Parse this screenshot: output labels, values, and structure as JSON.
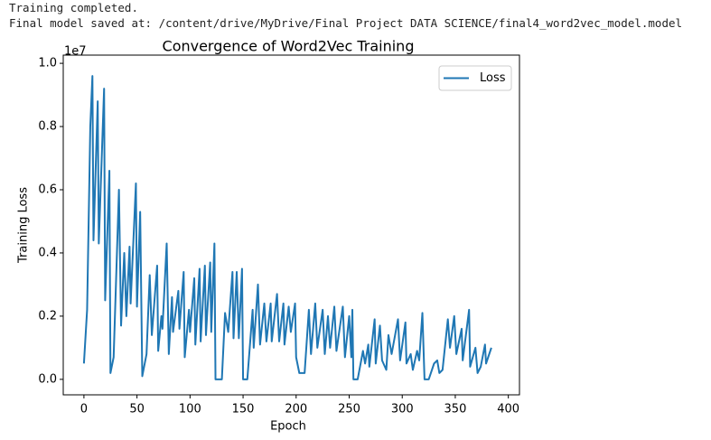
{
  "console": [
    "Training completed.",
    "Final model saved at: /content/drive/MyDrive/Final Project DATA SCIENCE/final4_word2vec_model.model"
  ],
  "chart_data": {
    "type": "line",
    "title": "Convergence of Word2Vec Training",
    "xlabel": "Epoch",
    "ylabel": "Training Loss",
    "y_offset_label": "1e7",
    "x": [
      0,
      3,
      6,
      8,
      9,
      13,
      14,
      19,
      20,
      24,
      25,
      28,
      33,
      35,
      38,
      40,
      43,
      44,
      49,
      50,
      53,
      55,
      59,
      62,
      64,
      69,
      70,
      73,
      74,
      78,
      80,
      83,
      84,
      89,
      90,
      94,
      95,
      99,
      100,
      104,
      105,
      109,
      110,
      114,
      115,
      119,
      120,
      123,
      124,
      130,
      133,
      136,
      140,
      141,
      144,
      146,
      149,
      150,
      154,
      159,
      160,
      164,
      166,
      170,
      172,
      176,
      177,
      182,
      184,
      188,
      189,
      193,
      195,
      199,
      200,
      203,
      208,
      212,
      214,
      218,
      220,
      225,
      227,
      230,
      232,
      236,
      238,
      244,
      246,
      250,
      252,
      253,
      254,
      258,
      263,
      265,
      268,
      269,
      274,
      275,
      279,
      281,
      285,
      287,
      290,
      296,
      298,
      303,
      304,
      308,
      310,
      314,
      316,
      319,
      321,
      325,
      330,
      333,
      335,
      338,
      343,
      345,
      349,
      351,
      356,
      357,
      363,
      364,
      369,
      371,
      374,
      378,
      379,
      384
    ],
    "series": [
      {
        "name": "Loss",
        "color": "#1f77b4",
        "values": [
          0.05,
          0.22,
          0.8,
          0.96,
          0.44,
          0.88,
          0.43,
          0.92,
          0.25,
          0.66,
          0.02,
          0.07,
          0.6,
          0.17,
          0.4,
          0.2,
          0.42,
          0.24,
          0.62,
          0.23,
          0.53,
          0.01,
          0.08,
          0.33,
          0.14,
          0.36,
          0.09,
          0.2,
          0.16,
          0.43,
          0.08,
          0.26,
          0.15,
          0.28,
          0.16,
          0.34,
          0.07,
          0.22,
          0.15,
          0.32,
          0.11,
          0.35,
          0.12,
          0.36,
          0.14,
          0.37,
          0.15,
          0.43,
          0.0,
          0.0,
          0.21,
          0.15,
          0.34,
          0.13,
          0.34,
          0.13,
          0.35,
          0.0,
          0.0,
          0.22,
          0.1,
          0.3,
          0.11,
          0.24,
          0.12,
          0.24,
          0.12,
          0.27,
          0.12,
          0.24,
          0.11,
          0.23,
          0.15,
          0.24,
          0.07,
          0.02,
          0.02,
          0.22,
          0.08,
          0.24,
          0.1,
          0.22,
          0.08,
          0.2,
          0.1,
          0.23,
          0.09,
          0.23,
          0.07,
          0.2,
          0.07,
          0.22,
          0.0,
          0.0,
          0.09,
          0.05,
          0.11,
          0.04,
          0.19,
          0.05,
          0.17,
          0.06,
          0.03,
          0.14,
          0.08,
          0.19,
          0.06,
          0.18,
          0.05,
          0.08,
          0.03,
          0.09,
          0.06,
          0.21,
          0.0,
          0.0,
          0.05,
          0.06,
          0.02,
          0.03,
          0.19,
          0.1,
          0.2,
          0.08,
          0.16,
          0.06,
          0.22,
          0.04,
          0.1,
          0.02,
          0.04,
          0.11,
          0.05,
          0.1
        ]
      }
    ],
    "xlim": [
      -19.5,
      410.5
    ],
    "ylim": [
      -0.049,
      1.026
    ],
    "xticks": [
      0,
      50,
      100,
      150,
      200,
      250,
      300,
      350,
      400
    ],
    "yticks": [
      {
        "value": 0,
        "label": "0.0"
      },
      0.2,
      0.4,
      0.6,
      0.8,
      {
        "value": 1,
        "label": "1.0"
      }
    ],
    "legend": "upper right"
  }
}
